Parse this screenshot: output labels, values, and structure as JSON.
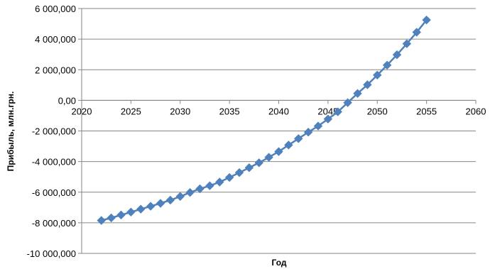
{
  "chart_data": {
    "type": "scatter",
    "title": "",
    "xlabel": "Год",
    "ylabel": "Прибыль, млн.грн.",
    "xlim": [
      2020,
      2060
    ],
    "ylim": [
      -10000000,
      6000000
    ],
    "x_ticks": [
      2020,
      2025,
      2030,
      2035,
      2040,
      2045,
      2050,
      2055,
      2060
    ],
    "x_tick_labels": [
      "2020",
      "2025",
      "2030",
      "2035",
      "2040",
      "2045",
      "2050",
      "2055",
      "2060"
    ],
    "y_ticks": [
      6000000,
      4000000,
      2000000,
      0,
      -2000000,
      -4000000,
      -6000000,
      -8000000,
      -10000000
    ],
    "y_tick_labels": [
      "6 000,000",
      "4 000,000",
      "2 000,000",
      "0,00",
      "-2 000,000",
      "-4 000,000",
      "-6 000,000",
      "-8 000,000",
      "-10 000,000"
    ],
    "grid": "horizontal",
    "legend": "none",
    "color": "#4F81BD",
    "marker": "diamond",
    "series": [
      {
        "x": [
          2022,
          2023,
          2024,
          2025,
          2026,
          2027,
          2028,
          2029,
          2030,
          2031,
          2032,
          2033,
          2034,
          2035,
          2036,
          2037,
          2038,
          2039,
          2040,
          2041,
          2042,
          2043,
          2044,
          2045,
          2046,
          2047,
          2048,
          2049,
          2050,
          2051,
          2052,
          2053,
          2054,
          2055
        ],
        "values": [
          -7850000,
          -7680000,
          -7490000,
          -7300000,
          -7110000,
          -6920000,
          -6730000,
          -6520000,
          -6280000,
          -6020000,
          -5780000,
          -5580000,
          -5340000,
          -5040000,
          -4720000,
          -4400000,
          -4080000,
          -3720000,
          -3350000,
          -2920000,
          -2500000,
          -2080000,
          -1680000,
          -1220000,
          -750000,
          -150000,
          450000,
          1020000,
          1650000,
          2300000,
          2980000,
          3700000,
          4450000,
          5250000
        ]
      }
    ]
  }
}
